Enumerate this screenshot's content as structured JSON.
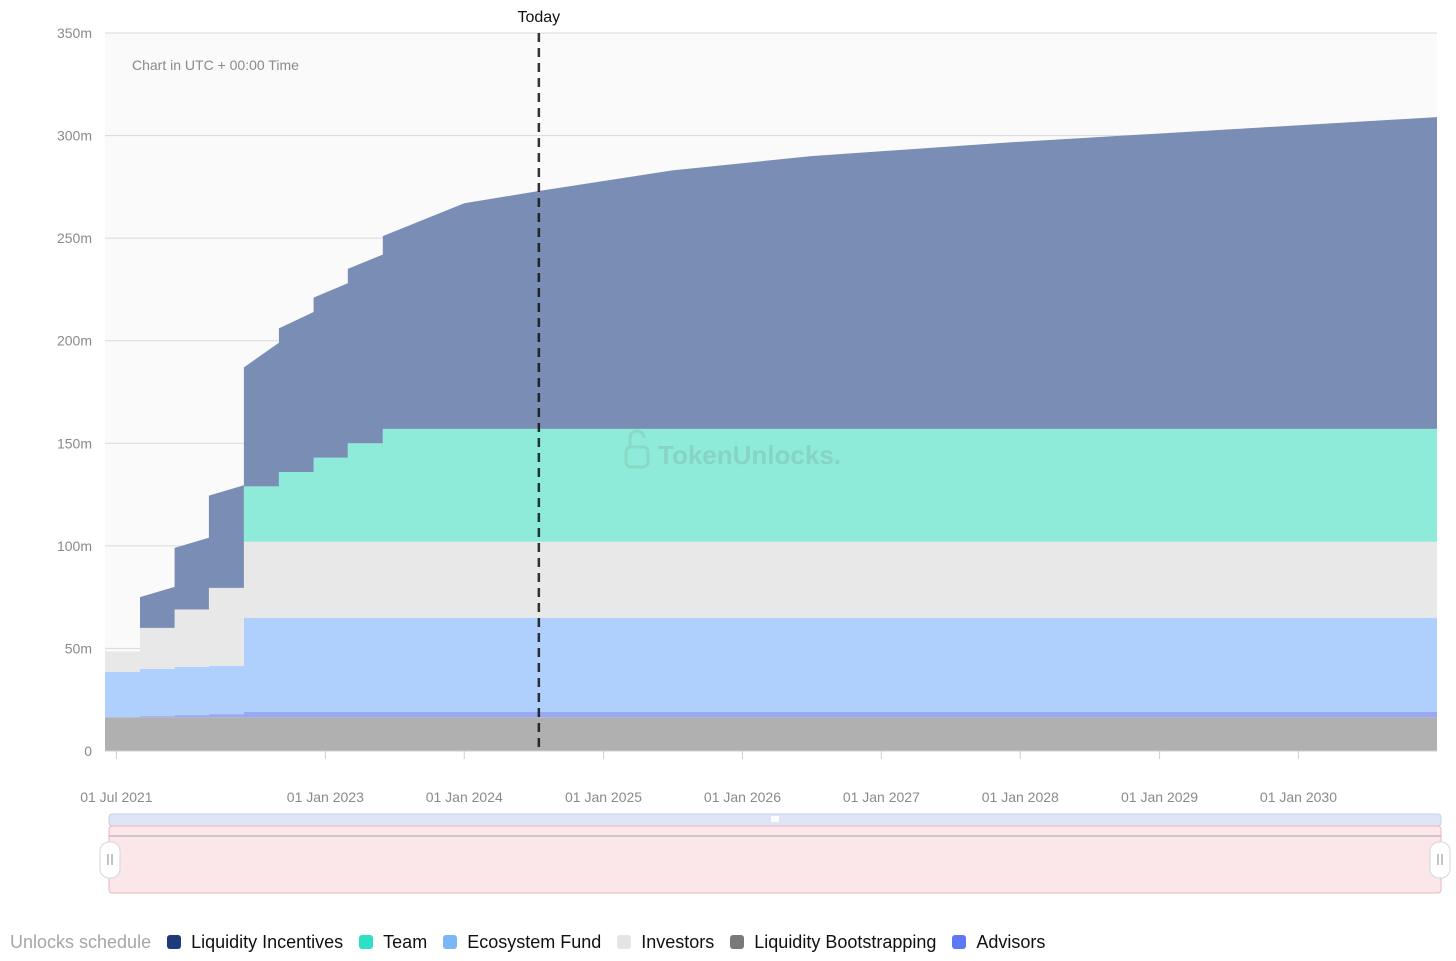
{
  "chart_data": {
    "type": "area",
    "note": "Chart in UTC + 00:00 Time",
    "today_label": "Today",
    "today": "2024-07-15",
    "x_range": [
      "2021-06-01",
      "2030-12-31"
    ],
    "ylim": [
      0,
      350000000
    ],
    "y_ticks": [
      0,
      50000000,
      100000000,
      150000000,
      200000000,
      250000000,
      300000000,
      350000000
    ],
    "y_tick_labels": [
      "0",
      "50m",
      "100m",
      "150m",
      "200m",
      "250m",
      "300m",
      "350m"
    ],
    "x_ticks": [
      "2021-07-01",
      "2023-01-01",
      "2024-01-01",
      "2025-01-01",
      "2026-01-01",
      "2027-01-01",
      "2028-01-01",
      "2029-01-01",
      "2030-01-01"
    ],
    "x_tick_labels": [
      "01 Jul 2021",
      "01 Jan 2023",
      "01 Jan 2024",
      "01 Jan 2025",
      "01 Jan 2026",
      "01 Jan 2027",
      "01 Jan 2028",
      "01 Jan 2029",
      "01 Jan 2030"
    ],
    "watermark": "TokenUnlocks.",
    "grid": true,
    "legend_position": "bottom",
    "legend_title": "Unlocks schedule",
    "stack_order": [
      "Liquidity Bootstrapping",
      "Advisors",
      "Ecosystem Fund",
      "Investors",
      "Team",
      "Liquidity Incentives"
    ],
    "series": [
      {
        "name": "Liquidity Incentives",
        "color": "#1d3b7a",
        "fill": "#7a8db4",
        "points": [
          [
            "2021-06-01",
            0
          ],
          [
            "2021-09-01",
            0
          ],
          [
            "2021-09-01",
            15000000
          ],
          [
            "2021-12-01",
            20000000
          ],
          [
            "2021-12-01",
            30000000
          ],
          [
            "2022-03-01",
            35000000
          ],
          [
            "2022-03-01",
            45000000
          ],
          [
            "2022-06-01",
            50000000
          ],
          [
            "2022-06-01",
            55000000
          ],
          [
            "2022-06-01",
            55000000
          ],
          [
            "2022-06-01",
            58000000
          ],
          [
            "2022-09-01",
            70000000
          ],
          [
            "2022-09-01",
            70000000
          ],
          [
            "2022-12-01",
            78000000
          ],
          [
            "2022-12-01",
            78000000
          ],
          [
            "2023-03-01",
            85000000
          ],
          [
            "2023-03-01",
            85000000
          ],
          [
            "2023-06-01",
            92000000
          ],
          [
            "2023-06-01",
            94000000
          ],
          [
            "2024-01-01",
            110000000
          ],
          [
            "2024-07-15",
            116000000
          ],
          [
            "2025-07-01",
            126000000
          ],
          [
            "2026-07-01",
            133000000
          ],
          [
            "2028-01-01",
            140000000
          ],
          [
            "2030-12-31",
            152000000
          ]
        ]
      },
      {
        "name": "Team",
        "color": "#2de0c4",
        "fill": "#8febd9",
        "points": [
          [
            "2021-06-01",
            0
          ],
          [
            "2022-06-01",
            0
          ],
          [
            "2022-06-01",
            27000000
          ],
          [
            "2022-09-01",
            27000000
          ],
          [
            "2022-09-01",
            34000000
          ],
          [
            "2022-12-01",
            34000000
          ],
          [
            "2022-12-01",
            41000000
          ],
          [
            "2023-03-01",
            41000000
          ],
          [
            "2023-03-01",
            48000000
          ],
          [
            "2023-06-01",
            48000000
          ],
          [
            "2023-06-01",
            55000000
          ],
          [
            "2030-12-31",
            55000000
          ]
        ]
      },
      {
        "name": "Ecosystem Fund",
        "color": "#7bb6f7",
        "fill": "#afd0fc",
        "points": [
          [
            "2021-06-01",
            22000000
          ],
          [
            "2021-09-01",
            22000000
          ],
          [
            "2021-09-01",
            23000000
          ],
          [
            "2021-12-01",
            23000000
          ],
          [
            "2021-12-01",
            23500000
          ],
          [
            "2022-03-01",
            23500000
          ],
          [
            "2022-03-01",
            23500000
          ],
          [
            "2022-06-01",
            23500000
          ],
          [
            "2022-06-01",
            46000000
          ],
          [
            "2030-12-31",
            46000000
          ]
        ]
      },
      {
        "name": "Investors",
        "color": "#e4e4e4",
        "fill": "#e8e8e8",
        "points": [
          [
            "2021-06-01",
            10000000
          ],
          [
            "2021-09-01",
            10000000
          ],
          [
            "2021-09-01",
            20000000
          ],
          [
            "2021-12-01",
            20000000
          ],
          [
            "2021-12-01",
            28000000
          ],
          [
            "2022-03-01",
            28000000
          ],
          [
            "2022-03-01",
            38000000
          ],
          [
            "2022-06-01",
            38000000
          ],
          [
            "2022-06-01",
            37000000
          ],
          [
            "2030-12-31",
            37000000
          ]
        ]
      },
      {
        "name": "Liquidity Bootstrapping",
        "color": "#7a7a7a",
        "fill": "#b0b0b0",
        "points": [
          [
            "2021-06-01",
            16500000
          ],
          [
            "2030-12-31",
            16500000
          ]
        ]
      },
      {
        "name": "Advisors",
        "color": "#5e79f5",
        "fill": "#9aa7f2",
        "points": [
          [
            "2021-06-01",
            0
          ],
          [
            "2021-09-01",
            0
          ],
          [
            "2021-09-01",
            500000
          ],
          [
            "2021-12-01",
            500000
          ],
          [
            "2021-12-01",
            1000000
          ],
          [
            "2022-03-01",
            1000000
          ],
          [
            "2022-03-01",
            1500000
          ],
          [
            "2022-06-01",
            1500000
          ],
          [
            "2022-06-01",
            2500000
          ],
          [
            "2030-12-31",
            2500000
          ]
        ]
      }
    ]
  }
}
